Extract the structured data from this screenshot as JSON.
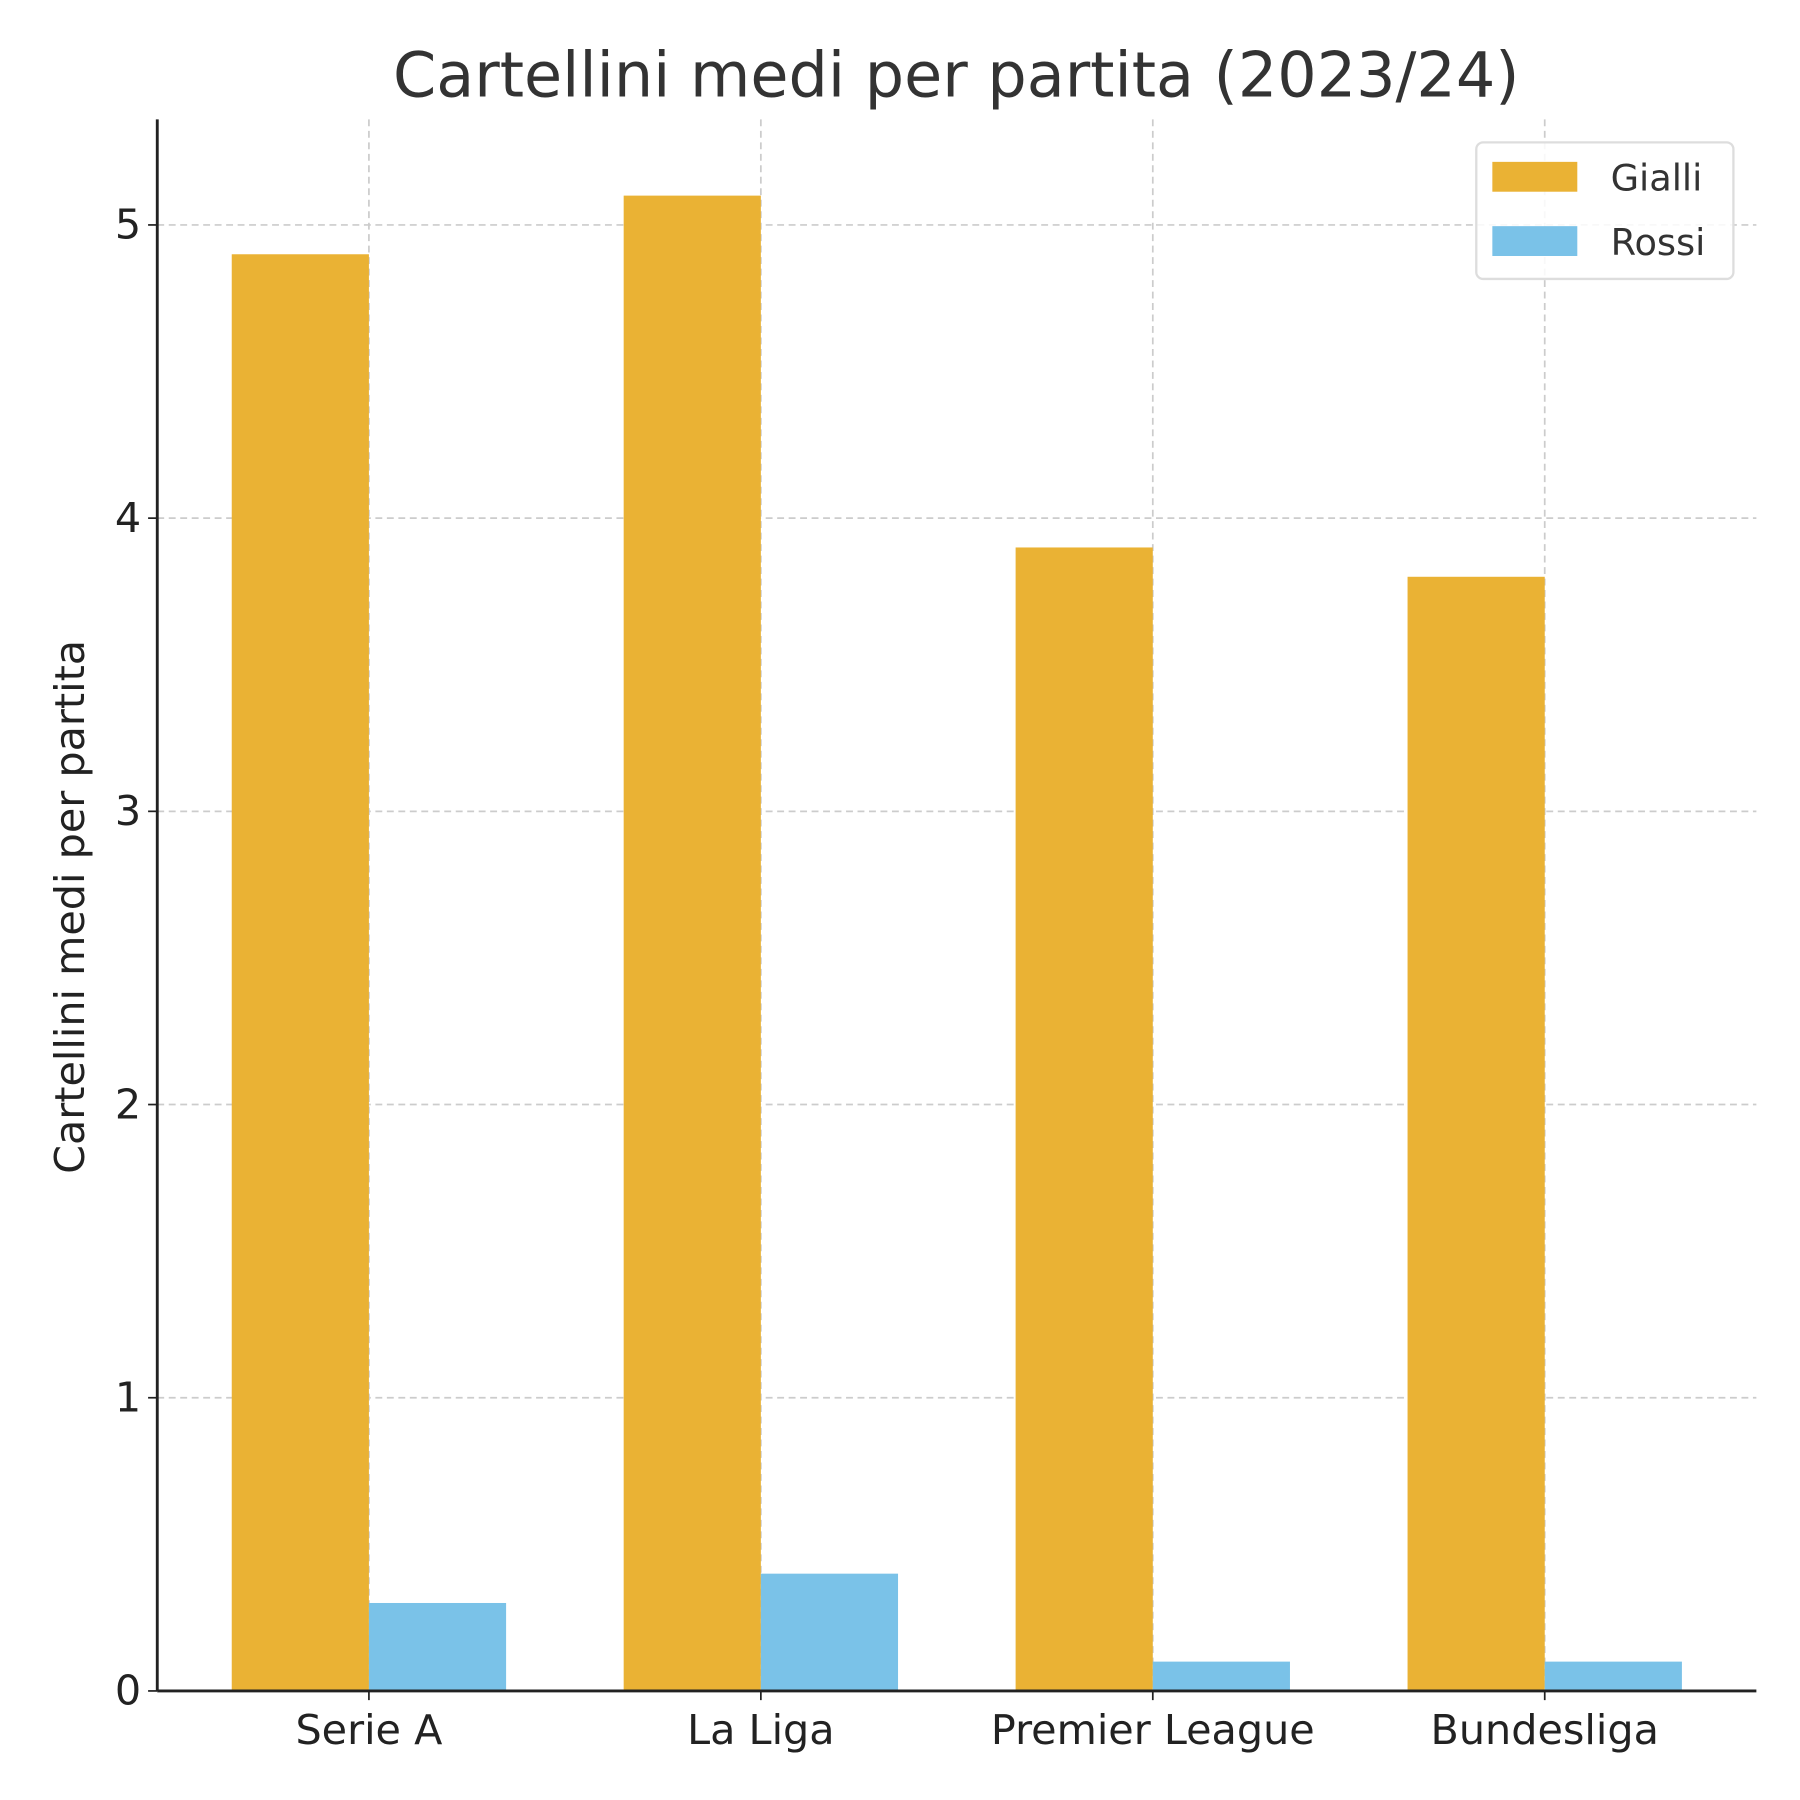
{
  "chart_data": {
    "type": "bar",
    "title": "Cartellini medi per partita (2023/24)",
    "xlabel": "",
    "ylabel": "Cartellini medi per partita",
    "categories": [
      "Serie A",
      "La Liga",
      "Premier League",
      "Bundesliga"
    ],
    "series": [
      {
        "name": "Gialli",
        "values": [
          4.9,
          5.1,
          3.9,
          3.8
        ],
        "color": "#EAB234"
      },
      {
        "name": "Rossi",
        "values": [
          0.3,
          0.4,
          0.1,
          0.1
        ],
        "color": "#7AC2E8"
      }
    ],
    "ylim": [
      0,
      5.36
    ],
    "yticks": [
      0,
      1,
      2,
      3,
      4,
      5
    ],
    "grid": true,
    "legend": "top-right"
  }
}
